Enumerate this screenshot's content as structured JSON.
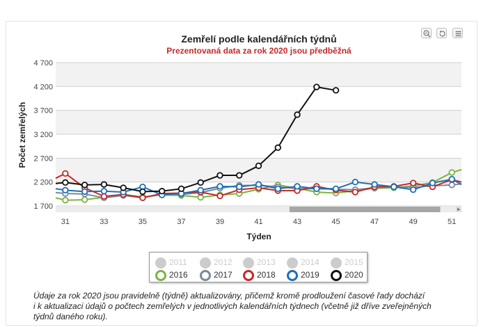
{
  "chart_data": {
    "type": "line",
    "title": "Zemřelí podle kalendářních týdnů",
    "subtitle": "Prezentovaná data za rok 2020 jsou předběžná",
    "xlabel": "Týden",
    "ylabel": "Počet zemřelých",
    "xlim": [
      30.5,
      51.5
    ],
    "ylim": [
      1700,
      4700
    ],
    "x_ticks": [
      31,
      33,
      35,
      37,
      39,
      41,
      43,
      45,
      47,
      49,
      51
    ],
    "y_ticks": [
      1700,
      2200,
      2700,
      3200,
      3700,
      4200,
      4700
    ],
    "y_tick_labels": [
      "1 700",
      "2 200",
      "2 700",
      "3 200",
      "3 700",
      "4 200",
      "4 700"
    ],
    "grid": "horizontal",
    "legend_position": "bottom",
    "series": [
      {
        "name": "2016",
        "color": "#7cb342",
        "x": [
          30.5,
          31,
          32,
          33,
          34,
          35,
          36,
          37,
          38,
          39,
          40,
          41,
          42,
          43,
          44,
          45,
          46,
          47,
          48,
          49,
          50,
          51,
          51.5
        ],
        "y": [
          1870,
          1820,
          1830,
          1880,
          1940,
          1890,
          1930,
          1920,
          1880,
          1930,
          1960,
          2050,
          2140,
          2070,
          1990,
          1970,
          2020,
          2070,
          2080,
          2120,
          2190,
          2400,
          2460
        ]
      },
      {
        "name": "2017",
        "color": "#7a8a99",
        "x": [
          30.5,
          31,
          32,
          33,
          34,
          35,
          36,
          37,
          38,
          39,
          40,
          41,
          42,
          43,
          44,
          45,
          46,
          47,
          48,
          49,
          50,
          51,
          51.5
        ],
        "y": [
          1980,
          1960,
          1950,
          1870,
          1920,
          1870,
          1950,
          1940,
          1980,
          2070,
          2130,
          2130,
          2100,
          2060,
          2060,
          2050,
          2040,
          2080,
          2100,
          2090,
          2120,
          2140,
          2160
        ]
      },
      {
        "name": "2018",
        "color": "#c62828",
        "x": [
          30.5,
          31,
          32,
          33,
          34,
          35,
          36,
          37,
          38,
          39,
          40,
          41,
          42,
          43,
          44,
          45,
          46,
          47,
          48,
          49,
          50,
          51,
          51.5
        ],
        "y": [
          2280,
          2380,
          2080,
          1900,
          1940,
          1870,
          1960,
          1970,
          1990,
          1910,
          2040,
          2080,
          2020,
          2020,
          2110,
          2030,
          1990,
          2100,
          2110,
          2180,
          2100,
          2250,
          2200
        ]
      },
      {
        "name": "2019",
        "color": "#1e6fb5",
        "x": [
          30.5,
          31,
          32,
          33,
          34,
          35,
          36,
          37,
          38,
          39,
          40,
          41,
          42,
          43,
          44,
          45,
          46,
          47,
          48,
          49,
          50,
          51,
          51.5
        ],
        "y": [
          2060,
          2030,
          2000,
          2010,
          1990,
          2100,
          1930,
          1960,
          2030,
          2110,
          2100,
          2150,
          2060,
          2110,
          2060,
          2060,
          2200,
          2150,
          2100,
          2040,
          2180,
          2260,
          2150
        ]
      },
      {
        "name": "2020",
        "color": "#111111",
        "x": [
          30.5,
          31,
          32,
          33,
          34,
          35,
          36,
          37,
          38,
          39,
          40,
          41,
          42,
          43,
          44,
          45
        ],
        "y": [
          2170,
          2190,
          2140,
          2150,
          2080,
          2000,
          2010,
          2060,
          2190,
          2340,
          2340,
          2540,
          2920,
          3610,
          4190,
          4120
        ]
      }
    ],
    "hidden_series": [
      "2011",
      "2012",
      "2013",
      "2014",
      "2015"
    ]
  },
  "legend": {
    "row1": [
      {
        "label": "2011",
        "active": false,
        "color": "#cccccc"
      },
      {
        "label": "2012",
        "active": false,
        "color": "#cccccc"
      },
      {
        "label": "2013",
        "active": false,
        "color": "#cccccc"
      },
      {
        "label": "2014",
        "active": false,
        "color": "#cccccc"
      },
      {
        "label": "2015",
        "active": false,
        "color": "#cccccc"
      }
    ],
    "row2": [
      {
        "label": "2016",
        "active": true,
        "color": "#7cb342"
      },
      {
        "label": "2017",
        "active": true,
        "color": "#7a8a99"
      },
      {
        "label": "2018",
        "active": true,
        "color": "#c62828"
      },
      {
        "label": "2019",
        "active": true,
        "color": "#1e6fb5"
      },
      {
        "label": "2020",
        "active": true,
        "color": "#111111"
      }
    ]
  },
  "toolbar": {
    "icons": [
      "zoom-out-icon",
      "reset-zoom-icon",
      "menu-icon"
    ]
  },
  "note": {
    "lines": [
      "Údaje za rok 2020 jsou pravidelně (týdně) aktualizovány, přičemž kromě prodloužení časové řady dochází",
      "i k aktualizaci údajů o počtech zemřelých v jednotlivých kalendářních týdnech (včetně již dříve zveřejněných",
      "týdnů daného roku)."
    ]
  },
  "scrollbar": {
    "window_start": 42.6,
    "window_end": 50.4
  }
}
